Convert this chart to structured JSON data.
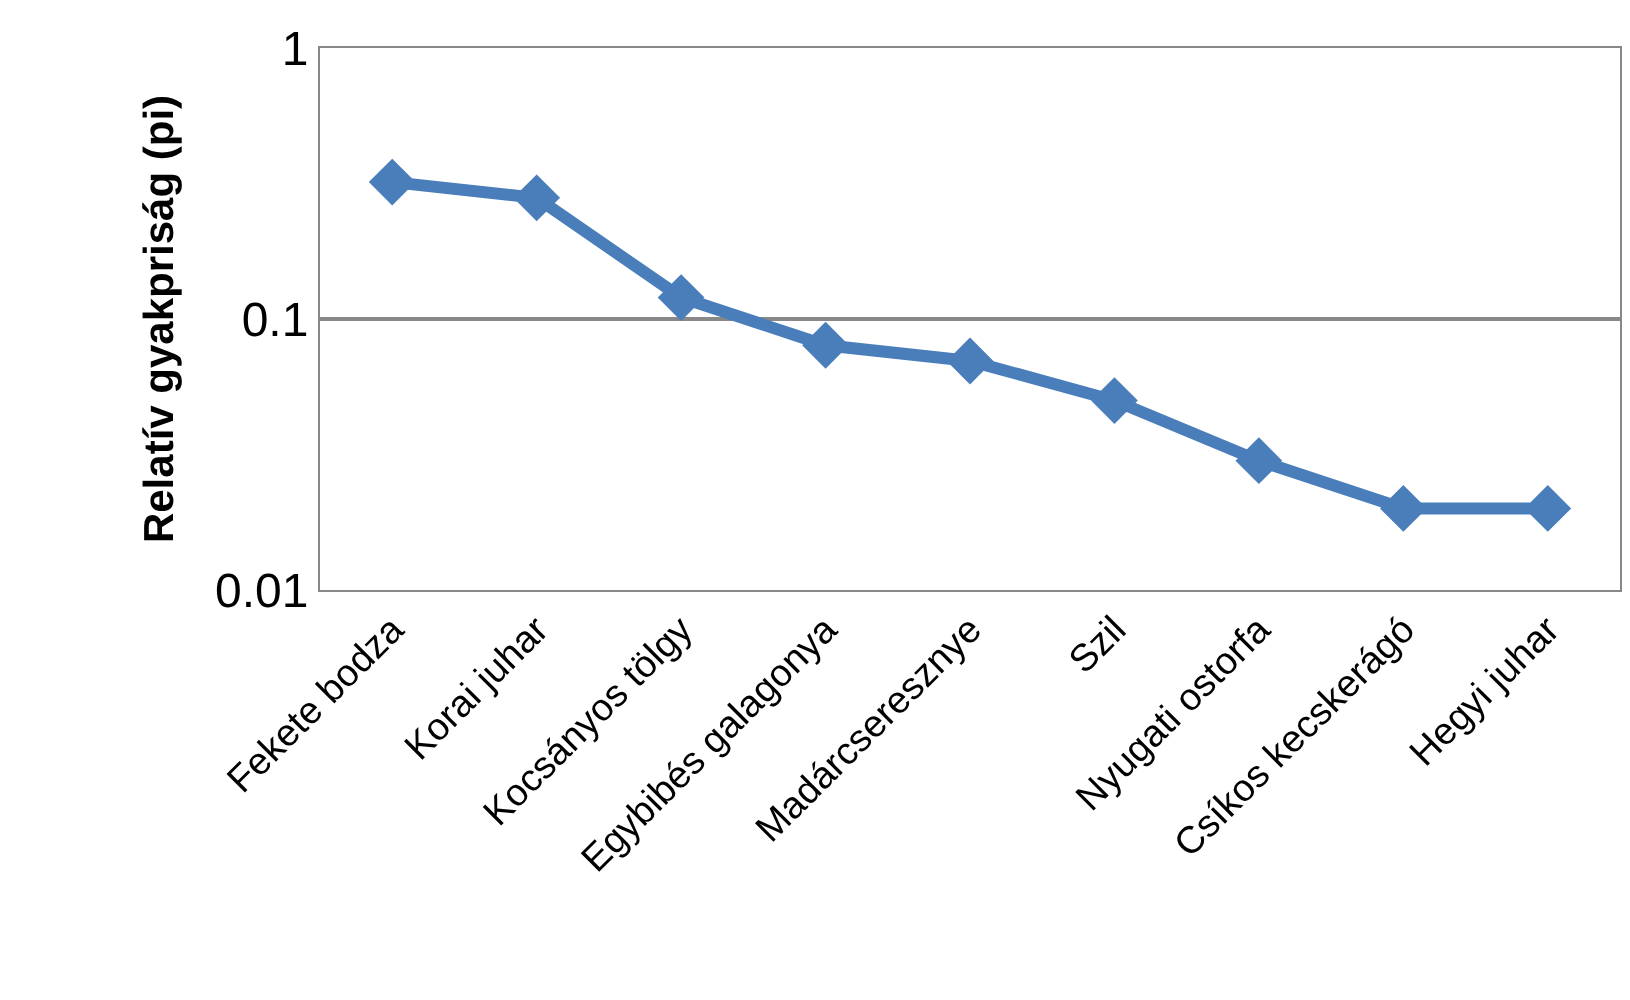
{
  "chart_data": {
    "type": "line",
    "ylabel": "Relatív gyakpriság (pi)",
    "categories": [
      "Fekete bodza",
      "Korai juhar",
      "Kocsányos tölgy",
      "Egybibés galagonya",
      "Madárcseresznye",
      "Szil",
      "Nyugati ostorfa",
      "Csíkos kecskerágó",
      "Hegyi juhar"
    ],
    "series": [
      {
        "color": "#4a7ebb",
        "values": [
          0.32,
          0.28,
          0.12,
          0.08,
          0.07,
          0.05,
          0.03,
          0.02,
          0.02
        ]
      }
    ],
    "log": "y",
    "ylim": [
      0.01,
      1
    ],
    "yticks": [
      0.01,
      0.1,
      1
    ],
    "grid": "y",
    "marker": "diamond",
    "line_style": "solid"
  }
}
